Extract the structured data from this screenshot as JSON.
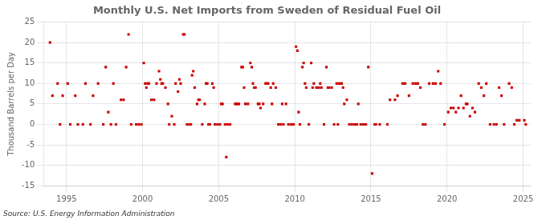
{
  "chart_data": {
    "type": "scatter",
    "title": "Monthly U.S. Net Imports from Sweden of Residual Fuel Oil",
    "ylabel": "Thousand Barrels per Day",
    "annotations": [
      "Source: U.S. Energy Information Administration"
    ],
    "color": "#cc0000",
    "marker": "square",
    "grid": true,
    "xlim": [
      1993.5,
      2025.5
    ],
    "xticks": [
      1995,
      2000,
      2005,
      2010,
      2015,
      2020,
      2025
    ],
    "ylim": [
      -15,
      25
    ],
    "yticks": [
      -15,
      -10,
      -5,
      0,
      5,
      10,
      15,
      20,
      25
    ],
    "x": [
      1993.92,
      1994.08,
      1994.42,
      1994.58,
      1994.75,
      1995.08,
      1995.25,
      1995.58,
      1995.75,
      1996.08,
      1996.25,
      1996.58,
      1996.75,
      1997.08,
      1997.42,
      1997.58,
      1997.75,
      1997.92,
      1998.08,
      1998.25,
      1998.58,
      1998.75,
      1998.92,
      1999.08,
      1999.25,
      1999.58,
      1999.75,
      1999.92,
      2000.08,
      2000.17,
      2000.25,
      2000.33,
      2000.42,
      2000.58,
      2000.75,
      2000.92,
      2001.08,
      2001.17,
      2001.25,
      2001.33,
      2001.5,
      2001.67,
      2001.75,
      2001.92,
      2002.08,
      2002.17,
      2002.33,
      2002.42,
      2002.5,
      2002.67,
      2002.75,
      2002.92,
      2003.08,
      2003.17,
      2003.25,
      2003.33,
      2003.42,
      2003.58,
      2003.67,
      2003.75,
      2003.92,
      2004.08,
      2004.17,
      2004.25,
      2004.33,
      2004.42,
      2004.58,
      2004.67,
      2004.75,
      2004.92,
      2005.08,
      2005.17,
      2005.25,
      2005.42,
      2005.5,
      2005.58,
      2005.75,
      2006.08,
      2006.17,
      2006.25,
      2006.33,
      2006.5,
      2006.58,
      2006.67,
      2006.75,
      2006.92,
      2007.08,
      2007.17,
      2007.25,
      2007.33,
      2007.42,
      2007.58,
      2007.67,
      2007.75,
      2007.92,
      2008.08,
      2008.17,
      2008.25,
      2008.42,
      2008.5,
      2008.58,
      2008.75,
      2008.92,
      2009.08,
      2009.17,
      2009.25,
      2009.42,
      2009.58,
      2009.75,
      2009.92,
      2010.08,
      2010.17,
      2010.25,
      2010.33,
      2010.5,
      2010.58,
      2010.67,
      2010.75,
      2010.92,
      2011.08,
      2011.17,
      2011.25,
      2011.42,
      2011.5,
      2011.58,
      2011.67,
      2011.75,
      2011.92,
      2012.08,
      2012.17,
      2012.25,
      2012.42,
      2012.58,
      2012.75,
      2012.83,
      2012.92,
      2013.08,
      2013.17,
      2013.25,
      2013.42,
      2013.58,
      2013.75,
      2013.92,
      2014.08,
      2014.17,
      2014.33,
      2014.5,
      2014.67,
      2014.83,
      2015.08,
      2015.25,
      2015.33,
      2015.58,
      2016.08,
      2016.25,
      2016.58,
      2016.75,
      2017.08,
      2017.25,
      2017.5,
      2017.75,
      2017.92,
      2018.08,
      2018.25,
      2018.42,
      2018.58,
      2018.83,
      2019.08,
      2019.25,
      2019.42,
      2019.58,
      2019.83,
      2020.08,
      2020.25,
      2020.42,
      2020.58,
      2020.75,
      2020.92,
      2021.08,
      2021.25,
      2021.33,
      2021.5,
      2021.67,
      2021.83,
      2022.08,
      2022.25,
      2022.42,
      2022.58,
      2022.83,
      2023.08,
      2023.25,
      2023.42,
      2023.58,
      2023.75,
      2024.08,
      2024.25,
      2024.42,
      2024.58,
      2024.75,
      2025.08,
      2025.17
    ],
    "values": [
      20,
      7,
      10,
      0,
      7,
      10,
      0,
      7,
      0,
      0,
      10,
      0,
      7,
      10,
      0,
      14,
      3,
      0,
      10,
      0,
      6,
      6,
      14,
      22,
      0,
      0,
      0,
      0,
      15,
      10,
      9,
      10,
      10,
      6,
      6,
      10,
      13,
      11,
      10,
      10,
      9,
      5,
      0,
      2,
      0,
      10,
      8,
      11,
      10,
      22,
      22,
      0,
      0,
      0,
      12,
      13,
      9,
      5,
      6,
      6,
      0,
      5,
      10,
      10,
      0,
      0,
      10,
      9,
      0,
      0,
      0,
      5,
      5,
      0,
      -8,
      0,
      0,
      5,
      5,
      5,
      5,
      14,
      14,
      9,
      5,
      5,
      15,
      14,
      10,
      9,
      9,
      5,
      5,
      4,
      5,
      10,
      10,
      10,
      9,
      5,
      10,
      9,
      0,
      0,
      5,
      0,
      5,
      0,
      0,
      0,
      19,
      18,
      3,
      0,
      14,
      15,
      10,
      9,
      0,
      15,
      9,
      10,
      9,
      9,
      9,
      10,
      9,
      0,
      14,
      9,
      9,
      9,
      0,
      10,
      0,
      10,
      10,
      9,
      5,
      6,
      0,
      0,
      0,
      0,
      5,
      0,
      0,
      0,
      14,
      -12,
      0,
      0,
      0,
      0,
      6,
      6,
      7,
      10,
      10,
      7,
      10,
      10,
      10,
      9,
      0,
      0,
      10,
      10,
      10,
      13,
      10,
      0,
      3,
      4,
      4,
      3,
      4,
      7,
      4,
      5,
      5,
      2,
      4,
      3,
      10,
      9,
      7,
      10,
      0,
      0,
      0,
      9,
      7,
      0,
      10,
      9,
      0,
      1,
      1,
      1,
      0
    ]
  }
}
